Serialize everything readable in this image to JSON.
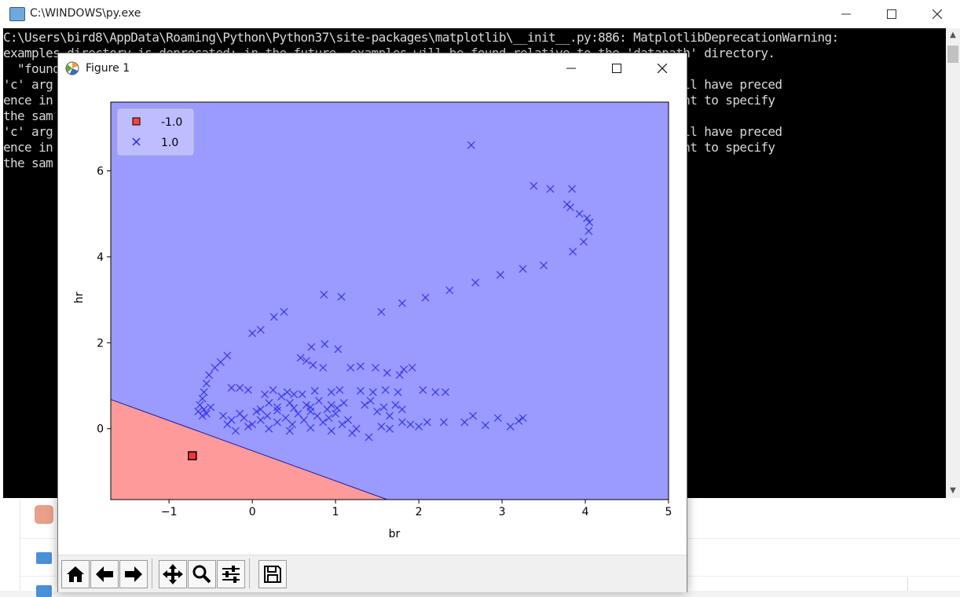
{
  "console": {
    "title": "C:\\WINDOWS\\py.exe",
    "lines": [
      "C:\\Users\\bird8\\AppData\\Roaming\\Python\\Python37\\site-packages\\matplotlib\\__init__.py:886: MatplotlibDeprecationWarning:",
      "examples.directory is deprecated; in the future, examples will be found relative to the 'datapath' directory.",
      "  \"found",
      "'c' arg                                                                      as value-mapping will have preced",
      "ence in                                                                      ow if you really want to specify",
      "the sam",
      "'c' arg                                                                      as value-mapping will have preced",
      "ence in                                                                      ow if you really want to specify",
      "the sam"
    ]
  },
  "figure": {
    "title": "Figure 1"
  },
  "chart_data": {
    "type": "scatter",
    "xlabel": "br",
    "ylabel": "hr",
    "xlim": [
      -1.7,
      5.0
    ],
    "ylim": [
      -1.65,
      7.6
    ],
    "xticks": [
      -1,
      0,
      1,
      2,
      3,
      4,
      5
    ],
    "yticks": [
      0,
      2,
      4,
      6
    ],
    "decision_boundary": {
      "x1": -1.7,
      "y1": 0.68,
      "x2": 1.62,
      "y2": -1.65
    },
    "region_colors": {
      "-1.0": "#ff9a9a",
      "1.0": "#9a9aff"
    },
    "legend": {
      "location": "upper-left",
      "entries": [
        "-1.0",
        "1.0"
      ]
    },
    "series": [
      {
        "name": "-1.0",
        "marker": "square",
        "color": "#ff2020",
        "points": [
          [
            -0.72,
            -0.63
          ]
        ]
      },
      {
        "name": "1.0",
        "marker": "x",
        "color": "#2828e6",
        "points": [
          [
            2.63,
            6.6
          ],
          [
            3.38,
            5.65
          ],
          [
            3.58,
            5.58
          ],
          [
            3.84,
            5.58
          ],
          [
            3.78,
            5.22
          ],
          [
            3.82,
            5.15
          ],
          [
            3.93,
            5.0
          ],
          [
            4.02,
            4.9
          ],
          [
            4.05,
            4.8
          ],
          [
            4.04,
            4.6
          ],
          [
            3.98,
            4.35
          ],
          [
            3.85,
            4.12
          ],
          [
            3.5,
            3.8
          ],
          [
            3.25,
            3.72
          ],
          [
            2.98,
            3.58
          ],
          [
            2.68,
            3.4
          ],
          [
            2.37,
            3.22
          ],
          [
            2.08,
            3.05
          ],
          [
            1.8,
            2.92
          ],
          [
            1.55,
            2.72
          ],
          [
            0.86,
            3.12
          ],
          [
            1.07,
            3.07
          ],
          [
            0.38,
            2.72
          ],
          [
            0.26,
            2.6
          ],
          [
            0.1,
            2.3
          ],
          [
            0.0,
            2.22
          ],
          [
            0.71,
            1.9
          ],
          [
            0.87,
            1.97
          ],
          [
            1.03,
            1.85
          ],
          [
            0.58,
            1.65
          ],
          [
            0.65,
            1.58
          ],
          [
            0.73,
            1.48
          ],
          [
            0.85,
            1.42
          ],
          [
            1.18,
            1.42
          ],
          [
            1.3,
            1.45
          ],
          [
            1.48,
            1.42
          ],
          [
            1.62,
            1.3
          ],
          [
            1.82,
            1.38
          ],
          [
            1.77,
            1.25
          ],
          [
            1.92,
            1.42
          ],
          [
            -0.3,
            1.7
          ],
          [
            -0.38,
            1.55
          ],
          [
            -0.45,
            1.42
          ],
          [
            -0.52,
            1.25
          ],
          [
            -0.55,
            1.05
          ],
          [
            -0.58,
            0.85
          ],
          [
            -0.6,
            0.7
          ],
          [
            -0.63,
            0.55
          ],
          [
            -0.58,
            0.45
          ],
          [
            -0.65,
            0.4
          ],
          [
            -0.55,
            0.35
          ],
          [
            -0.5,
            0.5
          ],
          [
            -0.6,
            0.3
          ],
          [
            -0.25,
            0.95
          ],
          [
            -0.15,
            0.95
          ],
          [
            -0.05,
            0.9
          ],
          [
            0.25,
            0.9
          ],
          [
            0.15,
            0.8
          ],
          [
            0.35,
            0.75
          ],
          [
            0.42,
            0.85
          ],
          [
            0.5,
            0.8
          ],
          [
            0.6,
            0.8
          ],
          [
            0.75,
            0.88
          ],
          [
            0.95,
            0.85
          ],
          [
            1.05,
            0.9
          ],
          [
            1.3,
            0.88
          ],
          [
            1.45,
            0.85
          ],
          [
            1.6,
            0.9
          ],
          [
            1.75,
            0.85
          ],
          [
            2.05,
            0.9
          ],
          [
            2.2,
            0.85
          ],
          [
            2.32,
            0.85
          ],
          [
            -0.35,
            0.3
          ],
          [
            -0.3,
            0.1
          ],
          [
            -0.25,
            0.2
          ],
          [
            -0.2,
            -0.05
          ],
          [
            -0.1,
            0.25
          ],
          [
            0.0,
            0.1
          ],
          [
            0.1,
            0.2
          ],
          [
            0.18,
            0.3
          ],
          [
            0.3,
            0.15
          ],
          [
            0.4,
            0.25
          ],
          [
            0.48,
            0.1
          ],
          [
            0.55,
            0.35
          ],
          [
            0.62,
            0.2
          ],
          [
            0.7,
            0.4
          ],
          [
            0.78,
            0.3
          ],
          [
            0.85,
            0.15
          ],
          [
            0.92,
            0.25
          ],
          [
            1.0,
            0.35
          ],
          [
            1.08,
            0.1
          ],
          [
            1.15,
            0.2
          ],
          [
            1.25,
            0.0
          ],
          [
            1.35,
            0.55
          ],
          [
            1.42,
            0.65
          ],
          [
            1.5,
            0.4
          ],
          [
            1.58,
            0.5
          ],
          [
            1.65,
            0.3
          ],
          [
            1.72,
            0.55
          ],
          [
            1.8,
            0.45
          ],
          [
            1.4,
            -0.2
          ],
          [
            1.55,
            0.05
          ],
          [
            1.65,
            0.0
          ],
          [
            1.8,
            0.15
          ],
          [
            1.9,
            0.1
          ],
          [
            2.0,
            0.05
          ],
          [
            2.1,
            0.15
          ],
          [
            2.3,
            0.15
          ],
          [
            2.55,
            0.15
          ],
          [
            2.65,
            0.3
          ],
          [
            2.8,
            0.08
          ],
          [
            2.95,
            0.25
          ],
          [
            3.1,
            0.05
          ],
          [
            3.2,
            0.18
          ],
          [
            3.25,
            0.25
          ],
          [
            0.2,
            0.6
          ],
          [
            0.3,
            0.5
          ],
          [
            0.45,
            0.6
          ],
          [
            0.65,
            0.55
          ],
          [
            0.8,
            0.65
          ],
          [
            0.95,
            0.55
          ],
          [
            1.1,
            0.6
          ],
          [
            0.1,
            0.45
          ],
          [
            0.3,
            0.42
          ],
          [
            0.5,
            0.48
          ],
          [
            0.7,
            0.5
          ],
          [
            0.9,
            0.45
          ],
          [
            1.02,
            0.48
          ],
          [
            -0.15,
            0.35
          ],
          [
            0.05,
            0.4
          ],
          [
            -0.05,
            0.05
          ],
          [
            0.2,
            0.0
          ],
          [
            0.45,
            -0.05
          ],
          [
            0.7,
            0.02
          ],
          [
            0.95,
            -0.05
          ],
          [
            1.2,
            -0.1
          ]
        ]
      }
    ]
  },
  "background": {
    "explorer_row_text": [
      "",
      "",
      ""
    ]
  }
}
